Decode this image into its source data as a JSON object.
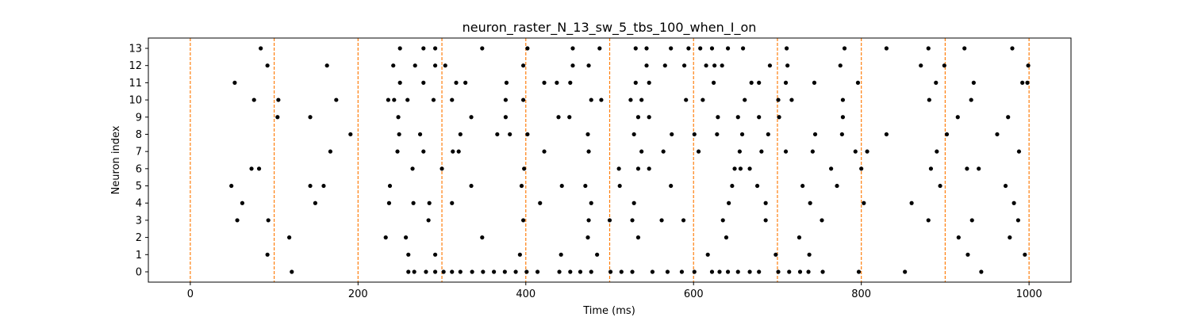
{
  "chart_data": {
    "type": "scatter",
    "title": "neuron_raster_N_13_sw_5_tbs_100_when_I_on",
    "xlabel": "Time (ms)",
    "ylabel": "Neuron index",
    "xlim": [
      -50,
      1050
    ],
    "ylim": [
      -0.6,
      13.6
    ],
    "xticks": [
      0,
      200,
      400,
      600,
      800,
      1000
    ],
    "yticks": [
      0,
      1,
      2,
      3,
      4,
      5,
      6,
      7,
      8,
      9,
      10,
      11,
      12,
      13
    ],
    "marker_color": "#000000",
    "vlines": {
      "x": [
        0,
        100,
        200,
        300,
        400,
        500,
        600,
        700,
        800,
        900,
        1000
      ],
      "color": "#ff7f0e",
      "style": "dashed"
    },
    "spikes": [
      {
        "neuron": 0,
        "times": [
          121,
          260,
          267,
          281,
          292,
          302,
          312,
          322,
          336,
          349,
          362,
          375,
          388,
          401,
          414,
          440,
          453,
          465,
          478,
          501,
          514,
          527,
          551,
          569,
          586,
          601,
          622,
          631,
          641,
          653,
          667,
          678,
          701,
          714,
          727,
          737,
          754,
          797,
          852,
          943
        ]
      },
      {
        "neuron": 1,
        "times": [
          92,
          260,
          292,
          393,
          442,
          485,
          617,
          698,
          738,
          927,
          995
        ]
      },
      {
        "neuron": 2,
        "times": [
          118,
          233,
          257,
          348,
          474,
          534,
          639,
          726,
          916,
          977
        ]
      },
      {
        "neuron": 3,
        "times": [
          56,
          93,
          284,
          397,
          475,
          500,
          527,
          562,
          588,
          635,
          686,
          753,
          880,
          932,
          987
        ]
      },
      {
        "neuron": 4,
        "times": [
          62,
          149,
          237,
          266,
          285,
          312,
          417,
          478,
          529,
          642,
          686,
          739,
          803,
          860,
          982
        ]
      },
      {
        "neuron": 5,
        "times": [
          49,
          143,
          159,
          238,
          335,
          395,
          443,
          471,
          512,
          573,
          646,
          676,
          730,
          771,
          894,
          972
        ]
      },
      {
        "neuron": 6,
        "times": [
          73,
          82,
          265,
          300,
          398,
          511,
          534,
          547,
          649,
          656,
          667,
          764,
          800,
          883,
          926,
          940
        ]
      },
      {
        "neuron": 7,
        "times": [
          167,
          247,
          278,
          313,
          320,
          422,
          475,
          538,
          564,
          606,
          655,
          681,
          710,
          742,
          793,
          807,
          890,
          988
        ]
      },
      {
        "neuron": 8,
        "times": [
          191,
          249,
          274,
          322,
          366,
          381,
          402,
          474,
          529,
          574,
          601,
          628,
          658,
          689,
          745,
          777,
          830,
          902,
          962
        ]
      },
      {
        "neuron": 9,
        "times": [
          104,
          143,
          248,
          335,
          376,
          439,
          452,
          534,
          547,
          629,
          653,
          678,
          702,
          778,
          915,
          975
        ]
      },
      {
        "neuron": 10,
        "times": [
          76,
          105,
          174,
          236,
          243,
          259,
          290,
          312,
          376,
          397,
          478,
          490,
          525,
          538,
          591,
          611,
          661,
          701,
          717,
          778,
          881,
          931
        ]
      },
      {
        "neuron": 11,
        "times": [
          53,
          250,
          278,
          317,
          328,
          377,
          422,
          437,
          453,
          531,
          547,
          624,
          669,
          678,
          710,
          744,
          796,
          889,
          934,
          992,
          998
        ]
      },
      {
        "neuron": 12,
        "times": [
          92,
          163,
          242,
          268,
          292,
          304,
          397,
          456,
          475,
          544,
          566,
          589,
          615,
          625,
          634,
          691,
          712,
          775,
          871,
          899,
          999
        ]
      },
      {
        "neuron": 13,
        "times": [
          84,
          250,
          278,
          292,
          348,
          402,
          456,
          488,
          531,
          544,
          573,
          594,
          608,
          622,
          641,
          659,
          711,
          780,
          830,
          880,
          923,
          980
        ]
      }
    ]
  }
}
